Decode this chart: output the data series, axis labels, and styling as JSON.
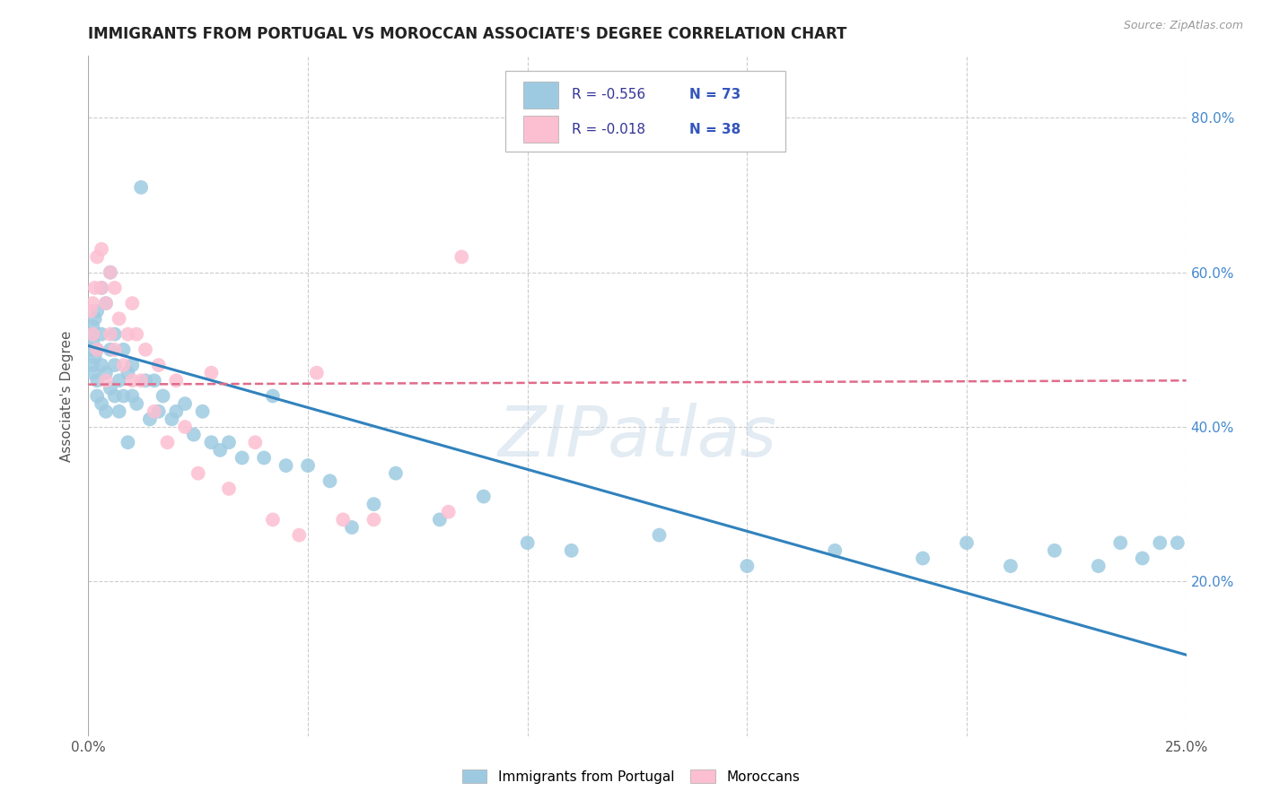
{
  "title": "IMMIGRANTS FROM PORTUGAL VS MOROCCAN ASSOCIATE'S DEGREE CORRELATION CHART",
  "source": "Source: ZipAtlas.com",
  "ylabel": "Associate's Degree",
  "ylabel_right_ticks": [
    "20.0%",
    "40.0%",
    "60.0%",
    "80.0%"
  ],
  "ylabel_right_vals": [
    0.2,
    0.4,
    0.6,
    0.8
  ],
  "watermark": "ZIPatlas",
  "legend_label1": "Immigrants from Portugal",
  "legend_label2": "Moroccans",
  "R1": -0.556,
  "N1": 73,
  "R2": -0.018,
  "N2": 38,
  "color1": "#9ecae1",
  "color2": "#fcbfd2",
  "line_color1": "#3182bd",
  "line_color2": "#e06c8a",
  "bg_color": "#ffffff",
  "grid_color": "#cccccc",
  "xlim": [
    0.0,
    0.25
  ],
  "ylim": [
    0.0,
    0.88
  ],
  "portugal_x": [
    0.0005,
    0.0008,
    0.001,
    0.001,
    0.001,
    0.001,
    0.0015,
    0.0015,
    0.002,
    0.002,
    0.002,
    0.002,
    0.003,
    0.003,
    0.003,
    0.003,
    0.004,
    0.004,
    0.004,
    0.005,
    0.005,
    0.005,
    0.006,
    0.006,
    0.006,
    0.007,
    0.007,
    0.008,
    0.008,
    0.009,
    0.009,
    0.01,
    0.01,
    0.011,
    0.012,
    0.013,
    0.014,
    0.015,
    0.016,
    0.017,
    0.019,
    0.02,
    0.022,
    0.024,
    0.026,
    0.028,
    0.03,
    0.032,
    0.035,
    0.04,
    0.042,
    0.045,
    0.05,
    0.055,
    0.06,
    0.065,
    0.07,
    0.08,
    0.09,
    0.1,
    0.11,
    0.13,
    0.15,
    0.17,
    0.19,
    0.2,
    0.21,
    0.22,
    0.23,
    0.235,
    0.24,
    0.244,
    0.248
  ],
  "portugal_y": [
    0.5,
    0.52,
    0.48,
    0.51,
    0.47,
    0.53,
    0.49,
    0.54,
    0.46,
    0.5,
    0.55,
    0.44,
    0.48,
    0.52,
    0.58,
    0.43,
    0.56,
    0.47,
    0.42,
    0.5,
    0.45,
    0.6,
    0.52,
    0.44,
    0.48,
    0.46,
    0.42,
    0.5,
    0.44,
    0.47,
    0.38,
    0.44,
    0.48,
    0.43,
    0.71,
    0.46,
    0.41,
    0.46,
    0.42,
    0.44,
    0.41,
    0.42,
    0.43,
    0.39,
    0.42,
    0.38,
    0.37,
    0.38,
    0.36,
    0.36,
    0.44,
    0.35,
    0.35,
    0.33,
    0.27,
    0.3,
    0.34,
    0.28,
    0.31,
    0.25,
    0.24,
    0.26,
    0.22,
    0.24,
    0.23,
    0.25,
    0.22,
    0.24,
    0.22,
    0.25,
    0.23,
    0.25,
    0.25
  ],
  "morocco_x": [
    0.0005,
    0.001,
    0.001,
    0.0015,
    0.002,
    0.002,
    0.003,
    0.003,
    0.004,
    0.004,
    0.005,
    0.005,
    0.006,
    0.006,
    0.007,
    0.008,
    0.009,
    0.01,
    0.01,
    0.011,
    0.012,
    0.013,
    0.015,
    0.016,
    0.018,
    0.02,
    0.022,
    0.025,
    0.028,
    0.032,
    0.038,
    0.042,
    0.048,
    0.052,
    0.058,
    0.065,
    0.082,
    0.085
  ],
  "morocco_y": [
    0.55,
    0.52,
    0.56,
    0.58,
    0.62,
    0.5,
    0.58,
    0.63,
    0.56,
    0.46,
    0.6,
    0.52,
    0.58,
    0.5,
    0.54,
    0.48,
    0.52,
    0.46,
    0.56,
    0.52,
    0.46,
    0.5,
    0.42,
    0.48,
    0.38,
    0.46,
    0.4,
    0.34,
    0.47,
    0.32,
    0.38,
    0.28,
    0.26,
    0.47,
    0.28,
    0.28,
    0.29,
    0.62
  ],
  "portugal_line_x": [
    0.0,
    0.25
  ],
  "portugal_line_y": [
    0.505,
    0.105
  ],
  "morocco_line_x": [
    0.0,
    0.25
  ],
  "morocco_line_y": [
    0.455,
    0.46
  ]
}
